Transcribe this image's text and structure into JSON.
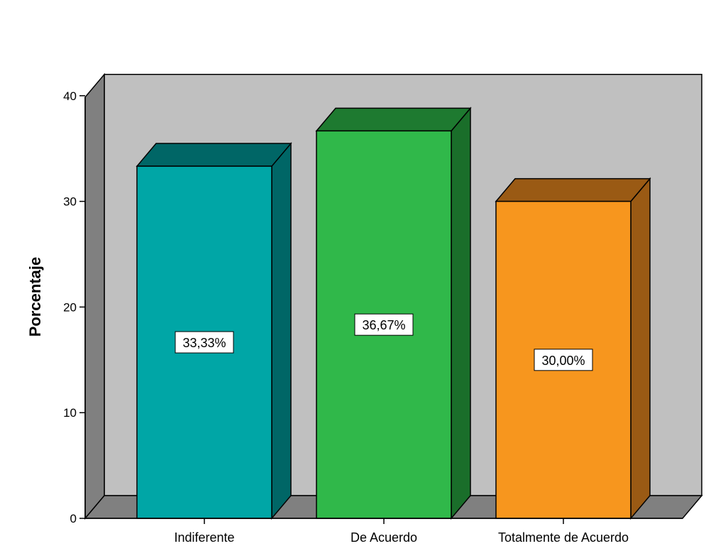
{
  "chart_data": {
    "type": "bar",
    "categories": [
      "Indiferente",
      "De Acuerdo",
      "Totalmente de Acuerdo"
    ],
    "values": [
      33.33,
      36.67,
      30.0
    ],
    "data_labels": [
      "33,33%",
      "36,67%",
      "30,00%"
    ],
    "ylabel": "Porcentaje",
    "xlabel": "",
    "ylim": [
      0,
      40
    ],
    "yticks": [
      0,
      10,
      20,
      30,
      40
    ],
    "grid": false,
    "bar_colors": [
      {
        "front": "#00a6a6",
        "side": "#006666",
        "top": "#006666"
      },
      {
        "front": "#30b84a",
        "side": "#1a6e2a",
        "top": "#1e7a30"
      },
      {
        "front": "#f7961e",
        "side": "#9a5a14",
        "top": "#9a5a14"
      }
    ],
    "back_wall_color": "#c0c0c0",
    "floor_color": "#808080",
    "side_wall_color": "#808080"
  }
}
